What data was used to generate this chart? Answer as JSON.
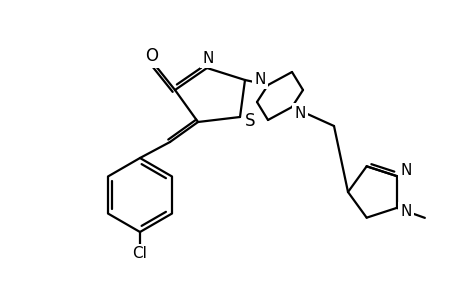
{
  "bg_color": "#ffffff",
  "line_color": "#000000",
  "line_width": 1.6,
  "font_size": 11,
  "atoms": {
    "O": "O",
    "N": "N",
    "S": "S",
    "Cl": "Cl"
  }
}
